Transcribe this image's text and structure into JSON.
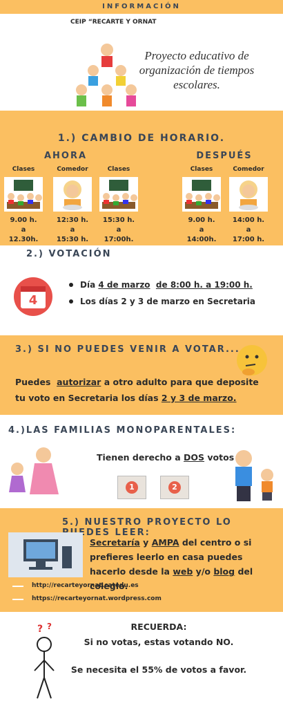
{
  "header": {
    "banner": "INFORMACIÓN",
    "school": "CEIP “RECARTE Y ORNAT",
    "project": "Proyecto educativo de organización de tiempos escolares."
  },
  "section1": {
    "title": "1.) CAMBIO DE HORARIO.",
    "before": {
      "heading": "AHORA",
      "columns": [
        {
          "label": "Clases",
          "time": [
            "9.00 h.",
            "a",
            "12.30h."
          ]
        },
        {
          "label": "Comedor",
          "time": [
            "12:30 h.",
            "a",
            "15:30 h."
          ]
        },
        {
          "label": "Clases",
          "time": [
            "15:30 h.",
            "a",
            "17:00h."
          ]
        }
      ]
    },
    "after": {
      "heading": "DESPUÉS",
      "columns": [
        {
          "label": "Clases",
          "time": [
            "9.00 h.",
            "a",
            "14:00h."
          ]
        },
        {
          "label": "Comedor",
          "time": [
            "14:00 h.",
            "a",
            "17:00 h."
          ]
        }
      ]
    }
  },
  "section2": {
    "title": "2.) VOTACIÓN",
    "calendar_day": "4",
    "bullets": [
      [
        {
          "t": "Día "
        },
        {
          "t": "4 de marzo",
          "u": true
        },
        {
          "t": "  "
        },
        {
          "t": "de 8:00 h. a 19:00 h.",
          "u": true
        }
      ],
      [
        {
          "t": "Los días 2 y 3 de marzo en Secretaria"
        }
      ]
    ]
  },
  "section3": {
    "title": "3.) SI NO PUEDES VENIR A VOTAR...",
    "text": [
      {
        "t": "Puedes  "
      },
      {
        "t": "autorizar",
        "u": true
      },
      {
        "t": " a otro adulto para que deposite tu voto en Secretaria los días "
      },
      {
        "t": "2 y 3 de marzo.",
        "u": true
      }
    ]
  },
  "section4": {
    "title": "4.)LAS FAMILIAS MONOPARENTALES:",
    "text": [
      {
        "t": "Tienen derecho a "
      },
      {
        "t": "DOS",
        "u": true
      },
      {
        "t": " votos"
      }
    ],
    "ballots": [
      "1",
      "2"
    ]
  },
  "section5": {
    "title": "5.) NUESTRO PROYECTO LO PUEDES LEER:",
    "text": [
      {
        "t": "Secretaría",
        "u": true
      },
      {
        "t": " y "
      },
      {
        "t": "AMPA",
        "u": true
      },
      {
        "t": " del centro o si prefieres leerlo en casa puedes hacerlo desde la "
      },
      {
        "t": "web",
        "u": true
      },
      {
        "t": " y/o "
      },
      {
        "t": "blog",
        "u": true
      },
      {
        "t": " del colegio."
      }
    ],
    "links": [
      "http://recarteyornat.catedu.es",
      "https://recarteyornat.wordpress.com"
    ]
  },
  "footer": {
    "heading": "RECUERDA:",
    "line1": "Si no votas, estas votando NO.",
    "line2": "Se necesita el 55% de votos a favor."
  }
}
